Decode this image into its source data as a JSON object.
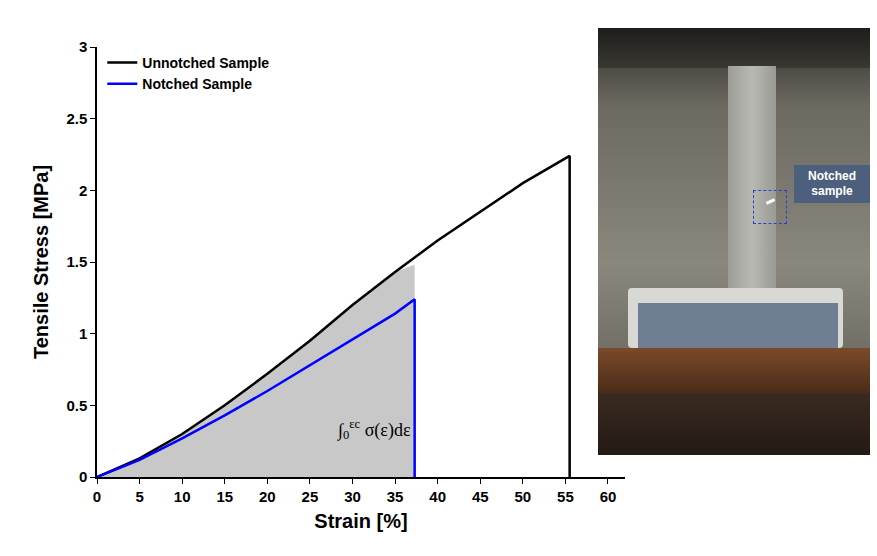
{
  "chart_data": {
    "type": "line",
    "xlabel": "Strain [%]",
    "ylabel": "Tensile Stress [MPa]",
    "xlim": [
      0,
      62
    ],
    "xticks": [
      0,
      5,
      10,
      15,
      20,
      25,
      30,
      35,
      40,
      45,
      50,
      55,
      60
    ],
    "ylim": [
      0,
      3
    ],
    "yticks": [
      0,
      0.5,
      1,
      1.5,
      2,
      2.5,
      3
    ],
    "grid": false,
    "legend": "upper left",
    "series": [
      {
        "name": "Unnotched Sample",
        "color": "#000000",
        "x": [
          0,
          5,
          10,
          15,
          20,
          25,
          30,
          35,
          40,
          45,
          50,
          55.5,
          55.5
        ],
        "values": [
          0,
          0.13,
          0.3,
          0.5,
          0.72,
          0.95,
          1.2,
          1.43,
          1.65,
          1.85,
          2.05,
          2.24,
          0
        ]
      },
      {
        "name": "Notched Sample",
        "color": "#0000ff",
        "x": [
          0,
          5,
          10,
          15,
          20,
          25,
          30,
          35,
          37.3,
          37.3
        ],
        "values": [
          0,
          0.12,
          0.27,
          0.43,
          0.6,
          0.78,
          0.96,
          1.14,
          1.24,
          0
        ]
      }
    ],
    "shaded_area": {
      "color": "#c8c8c8",
      "x": [
        0,
        5,
        10,
        15,
        20,
        25,
        30,
        35,
        37.3,
        37.3
      ],
      "values": [
        0,
        0.13,
        0.3,
        0.5,
        0.72,
        0.95,
        1.2,
        1.43,
        1.48,
        0
      ]
    },
    "annotation": {
      "symbol": "∫",
      "lower": "0",
      "upper": "εc",
      "integrand": "σ(ε)dε"
    }
  },
  "inset": {
    "label": "Notched sample"
  }
}
